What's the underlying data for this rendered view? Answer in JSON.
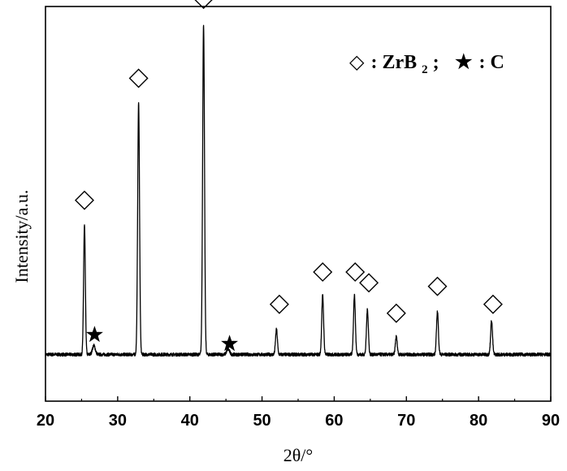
{
  "chart_data": {
    "type": "line",
    "xlabel": "2θ/°",
    "ylabel": "Intensity/a.u.",
    "xlim": [
      20,
      90
    ],
    "ylim": [
      -5,
      105
    ],
    "x_ticks": [
      20,
      30,
      40,
      50,
      60,
      70,
      80,
      90
    ],
    "grid": false,
    "legend_placement": "top-right",
    "legend": [
      {
        "symbol": "◇",
        "label": "ZrB",
        "sub": "2",
        "suffix": ";"
      },
      {
        "symbol": "★",
        "label": "C",
        "sub": "",
        "suffix": ""
      }
    ],
    "baseline": 8,
    "peaks": [
      {
        "x": 25.4,
        "y": 44,
        "width": 0.12
      },
      {
        "x": 26.7,
        "y": 10.5,
        "width": 0.2
      },
      {
        "x": 32.9,
        "y": 78,
        "width": 0.13
      },
      {
        "x": 41.9,
        "y": 100,
        "width": 0.13
      },
      {
        "x": 45.3,
        "y": 9.5,
        "width": 0.2
      },
      {
        "x": 52.0,
        "y": 15,
        "width": 0.13
      },
      {
        "x": 58.4,
        "y": 24.5,
        "width": 0.13
      },
      {
        "x": 62.8,
        "y": 24.5,
        "width": 0.13
      },
      {
        "x": 64.6,
        "y": 20.5,
        "width": 0.13
      },
      {
        "x": 68.6,
        "y": 13,
        "width": 0.13
      },
      {
        "x": 74.3,
        "y": 20,
        "width": 0.13
      },
      {
        "x": 81.8,
        "y": 17.5,
        "width": 0.13
      }
    ],
    "markers": [
      {
        "symbol": "diamond",
        "phase": "ZrB2",
        "x": 25.4,
        "y": 51
      },
      {
        "symbol": "diamond",
        "phase": "ZrB2",
        "x": 32.9,
        "y": 85
      },
      {
        "symbol": "diamond",
        "phase": "ZrB2",
        "x": 41.9,
        "y": 107
      },
      {
        "symbol": "diamond",
        "phase": "ZrB2",
        "x": 52.4,
        "y": 22
      },
      {
        "symbol": "diamond",
        "phase": "ZrB2",
        "x": 58.4,
        "y": 31
      },
      {
        "symbol": "diamond",
        "phase": "ZrB2",
        "x": 62.9,
        "y": 31
      },
      {
        "symbol": "diamond",
        "phase": "ZrB2",
        "x": 64.8,
        "y": 28
      },
      {
        "symbol": "diamond",
        "phase": "ZrB2",
        "x": 68.6,
        "y": 19.5
      },
      {
        "symbol": "diamond",
        "phase": "ZrB2",
        "x": 74.3,
        "y": 27
      },
      {
        "symbol": "diamond",
        "phase": "ZrB2",
        "x": 82.0,
        "y": 22
      },
      {
        "symbol": "star",
        "phase": "C",
        "x": 26.8,
        "y": 13.5
      },
      {
        "symbol": "star",
        "phase": "C",
        "x": 45.5,
        "y": 11
      }
    ]
  }
}
